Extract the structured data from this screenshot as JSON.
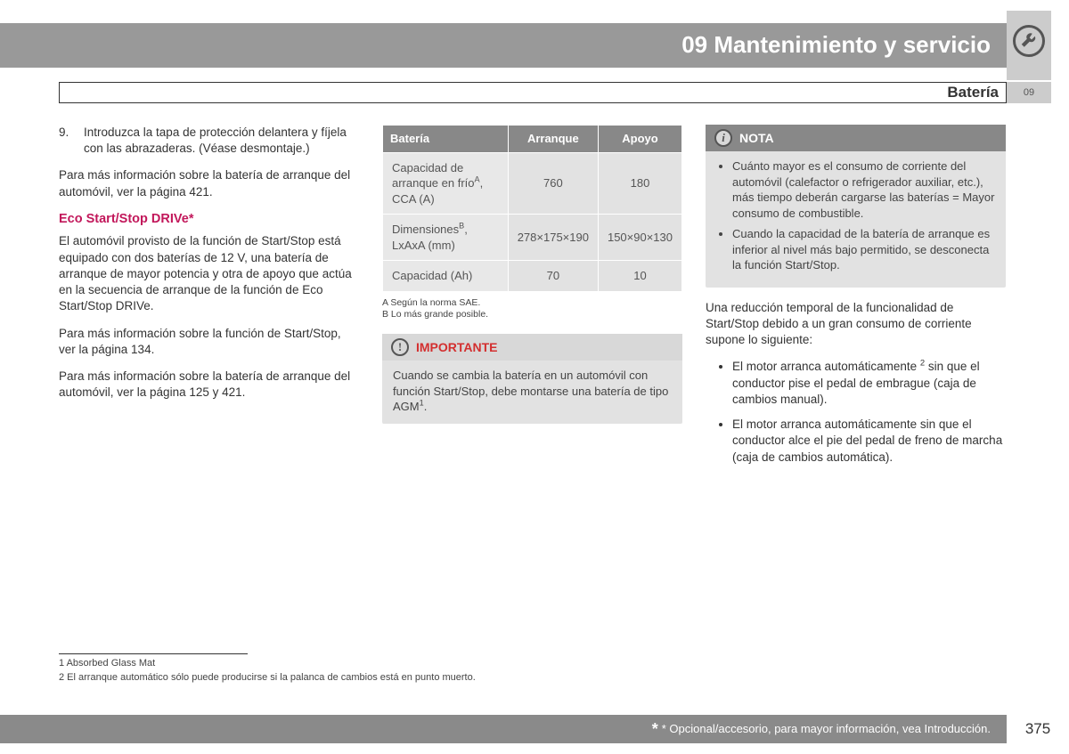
{
  "header": {
    "chapter_title": "09 Mantenimiento y servicio",
    "section_title": "Batería",
    "side_tab": "09"
  },
  "column1": {
    "step_num": "9.",
    "step_text": "Introduzca la tapa de protección delantera y fíjela con las abrazaderas. (Véase desmontaje.)",
    "para1": "Para más información sobre la batería de arranque del automóvil, ver la página 421.",
    "subheading": "Eco Start/Stop DRIVe*",
    "para2": "El automóvil provisto de la función de Start/Stop está equipado con dos baterías de 12 V, una batería de arranque de mayor potencia y otra de apoyo que actúa en la secuencia de arranque de la función de Eco Start/Stop DRIVe.",
    "para3": "Para más información sobre la función de Start/Stop, ver la página 134.",
    "para4": "Para más información sobre la batería de arranque del automóvil, ver la página 125 y 421."
  },
  "spec_table": {
    "headers": [
      "Batería",
      "Arranque",
      "Apoyo"
    ],
    "rows": [
      {
        "label_html": "Capacidad de arranque en frío<sup>A</sup>, CCA (A)",
        "c1": "760",
        "c2": "180"
      },
      {
        "label_html": "Dimensiones<sup>B</sup>, LxAxA (mm)",
        "c1": "278×175×190",
        "c2": "150×90×130"
      },
      {
        "label_html": "Capacidad (Ah)",
        "c1": "70",
        "c2": "10"
      }
    ],
    "footnote_a": "A  Según la norma SAE.",
    "footnote_b": "B  Lo más grande posible."
  },
  "importante": {
    "title": "IMPORTANTE",
    "body_html": "Cuando se cambia la batería en un automóvil con función Start/Stop, debe montarse una batería de tipo AGM<sup>1</sup>."
  },
  "nota": {
    "title": "NOTA",
    "bullets": [
      "Cuánto mayor es el consumo de corriente del automóvil (calefactor o refrigerador auxiliar, etc.), más tiempo deberán cargarse las baterías = Mayor consumo de combustible.",
      "Cuando la capacidad de la batería de arranque es inferior al nivel más bajo permitido, se desconecta la función Start/Stop."
    ]
  },
  "col3": {
    "para1": "Una reducción temporal de la funcionalidad de Start/Stop debido a un gran consumo de corriente supone lo siguiente:",
    "bullets_html": [
      "El motor arranca automáticamente <sup>2</sup> sin que el conductor pise el pedal de embrague (caja de cambios manual).",
      "El motor arranca automáticamente sin que el conductor alce el pie del pedal de freno de marcha (caja de cambios automática)."
    ]
  },
  "bottom_footnotes": {
    "fn1": "1  Absorbed Glass Mat",
    "fn2": "2  El arranque automático sólo puede producirse si la palanca de cambios está en punto muerto."
  },
  "footer": {
    "asterisk_text": "* Opcional/accesorio, para mayor información, vea Introducción.",
    "page_number": "375"
  },
  "colors": {
    "gray_header": "#999999",
    "gray_light": "#cccccc",
    "red_heading": "#c2185b",
    "red_important": "#d32f2f",
    "cell_bg": "#e2e2e2"
  }
}
